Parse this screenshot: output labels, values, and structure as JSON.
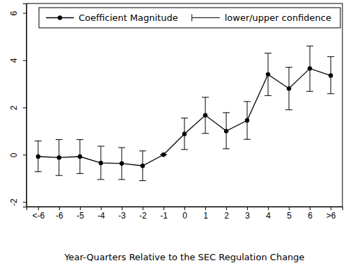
{
  "chart_data": {
    "type": "line",
    "x_label": "Year-Quarters Relative to the SEC Regulation Change",
    "categories": [
      "<-6",
      "-6",
      "-5",
      "-4",
      "-3",
      "-2",
      "-1",
      "0",
      "1",
      "2",
      "3",
      "4",
      "5",
      "6",
      ">6"
    ],
    "series": [
      {
        "name": "Coefficient Magnitude",
        "color": "#000000",
        "marker": "circle",
        "line_style": "solid",
        "values": [
          -0.08,
          -0.12,
          -0.08,
          -0.35,
          -0.37,
          -0.47,
          0,
          0.88,
          1.67,
          1.0,
          1.45,
          3.4,
          2.8,
          3.65,
          3.35
        ],
        "error": {
          "name": "lower/upper confidence",
          "lower": [
            -0.72,
            -0.88,
            -0.8,
            -1.05,
            -1.05,
            -1.1,
            0,
            0.22,
            0.9,
            0.25,
            0.65,
            2.5,
            1.9,
            2.68,
            2.58
          ],
          "upper": [
            0.58,
            0.64,
            0.64,
            0.36,
            0.3,
            0.16,
            0,
            1.55,
            2.43,
            1.78,
            2.25,
            4.3,
            3.7,
            4.6,
            4.15
          ]
        }
      }
    ],
    "ylim": [
      -2.2,
      6.4
    ],
    "yticks": [
      -2,
      0,
      2,
      4,
      6
    ],
    "grid": false,
    "legend": "top"
  }
}
